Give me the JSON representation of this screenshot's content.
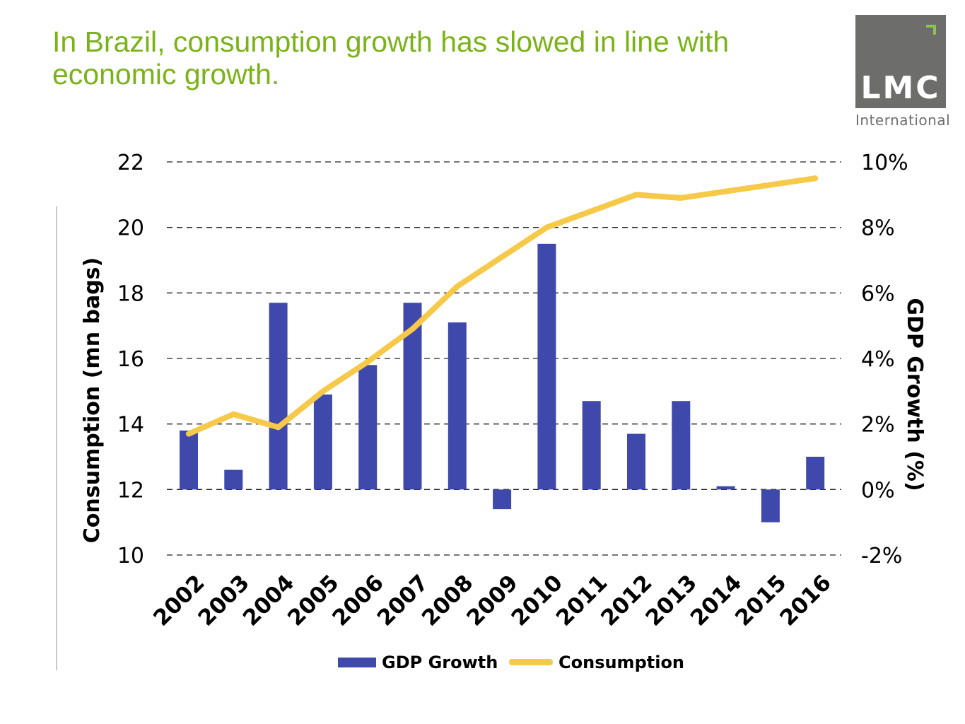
{
  "title": "In Brazil, consumption growth has slowed in line with economic growth.",
  "logo": {
    "text": "LMC",
    "subtext": "International",
    "icon": "corner-bracket-icon"
  },
  "colors": {
    "title": "#7ab317",
    "bars": "#3f48ab",
    "line": "#f7c948",
    "logo_bg": "#6d6e6c",
    "logo_accent": "#8dc63f"
  },
  "chart_data": {
    "type": "bar+line",
    "categories": [
      "2002",
      "2003",
      "2004",
      "2005",
      "2006",
      "2007",
      "2008",
      "2009",
      "2010",
      "2011",
      "2012",
      "2013",
      "2014",
      "2015",
      "2016"
    ],
    "series": [
      {
        "name": "GDP Growth",
        "type": "bar",
        "axis": "right",
        "values": [
          1.8,
          0.6,
          5.7,
          2.9,
          3.8,
          5.7,
          5.1,
          -0.6,
          7.5,
          2.7,
          1.7,
          2.7,
          0.1,
          -1.0,
          1.0
        ]
      },
      {
        "name": "Consumption",
        "type": "line",
        "axis": "left",
        "values": [
          13.7,
          14.3,
          13.9,
          15.0,
          15.9,
          16.9,
          18.2,
          19.1,
          20.0,
          20.5,
          21.0,
          20.9,
          21.1,
          21.3,
          21.5
        ]
      }
    ],
    "y_left": {
      "label": "Consumption (mn bags)",
      "ylim": [
        10,
        22
      ],
      "ticks": [
        "10",
        "12",
        "14",
        "16",
        "18",
        "20",
        "22"
      ]
    },
    "y_right": {
      "label": "GDP Growth (%)",
      "ylim": [
        -2,
        10
      ],
      "ticks": [
        "-2%",
        "0%",
        "2%",
        "4%",
        "6%",
        "8%",
        "10%"
      ]
    },
    "grid": "dashed horizontal",
    "legend_position": "bottom"
  }
}
